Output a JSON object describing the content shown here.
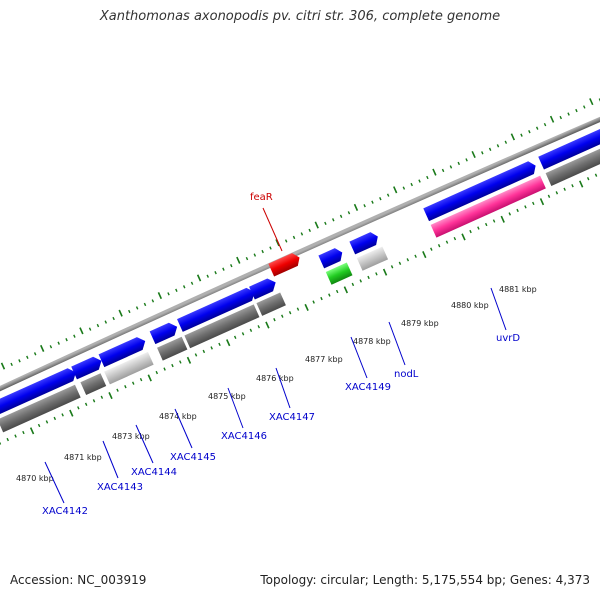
{
  "title": "Xanthomonas axonopodis pv. citri str. 306, complete genome",
  "footer": {
    "accession": "Accession: NC_003919",
    "stats": "Topology: circular; Length: 5,175,554 bp; Genes: 4,373"
  },
  "colors": {
    "backbone": "#8c8c8c",
    "forward_gene": "#0000ee",
    "reverse_gene": "#6e6e6e",
    "reverse_gene_light": "#c6c6c6",
    "rna_gene": "#e8e8e8",
    "highlight_red": "#ee0000",
    "highlight_green": "#22cc22",
    "highlight_magenta": "#ff3399",
    "tick": "#1a7a1a",
    "gene_label": "#0000cc",
    "feature_label": "#cc0000"
  },
  "scale": {
    "tick_labels": [
      "4870 kbp",
      "4871 kbp",
      "4873 kbp",
      "4874 kbp",
      "4875 kbp",
      "4876 kbp",
      "4877 kbp",
      "4878 kbp",
      "4879 kbp",
      "4880 kbp",
      "4881 kbp"
    ]
  },
  "gene_labels": [
    {
      "text": "XAC4142",
      "color": "blue"
    },
    {
      "text": "XAC4143",
      "color": "blue"
    },
    {
      "text": "XAC4144",
      "color": "blue"
    },
    {
      "text": "XAC4145",
      "color": "blue"
    },
    {
      "text": "XAC4146",
      "color": "blue"
    },
    {
      "text": "XAC4147",
      "color": "blue"
    },
    {
      "text": "XAC4149",
      "color": "blue"
    },
    {
      "text": "nodL",
      "color": "blue"
    },
    {
      "text": "uvrD",
      "color": "blue"
    },
    {
      "text": "feaR",
      "color": "red"
    }
  ]
}
